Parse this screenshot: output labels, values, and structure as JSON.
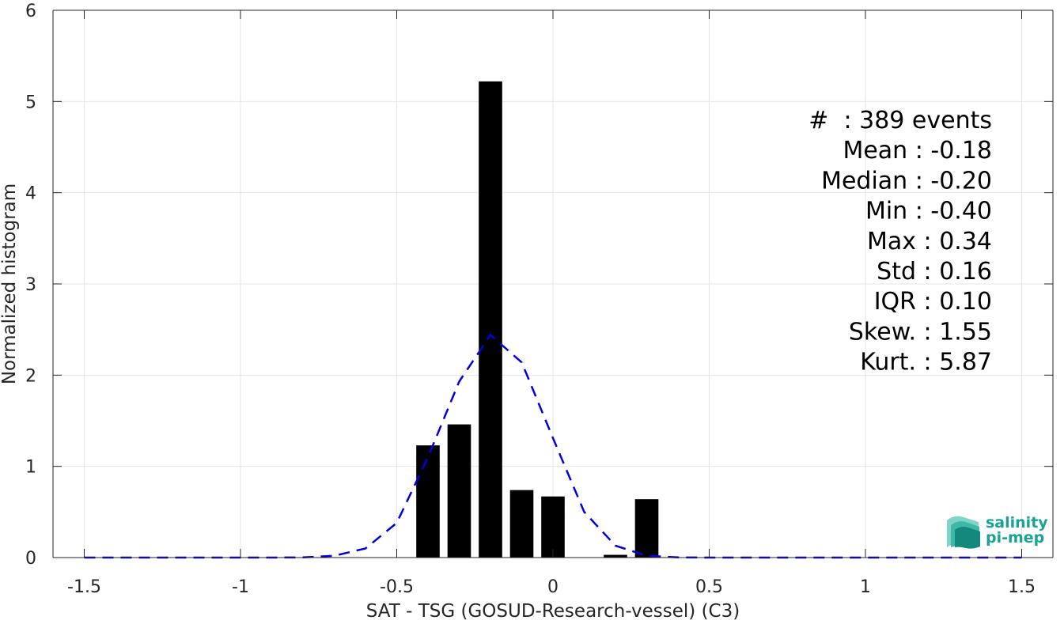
{
  "chart_data": {
    "type": "bar",
    "title": "",
    "xlabel": "SAT - TSG (GOSUD-Research-vessel) (C3)",
    "ylabel": "Normalized histogram",
    "xlim": [
      -1.6,
      1.6
    ],
    "ylim": [
      0,
      6
    ],
    "xticks": [
      -1.5,
      -1,
      -0.5,
      0,
      0.5,
      1,
      1.5
    ],
    "xtick_labels": [
      "-1.5",
      "-1",
      "-0.5",
      "0",
      "0.5",
      "1",
      "1.5"
    ],
    "yticks": [
      0,
      1,
      2,
      3,
      4,
      5,
      6
    ],
    "ytick_labels": [
      "0",
      "1",
      "2",
      "3",
      "4",
      "5",
      "6"
    ],
    "grid": true,
    "series": [
      {
        "type": "bar",
        "color": "#000000",
        "bin_width": 0.075,
        "x": [
          -0.4,
          -0.3,
          -0.2,
          -0.1,
          0.0,
          0.2,
          0.3
        ],
        "values": [
          1.23,
          1.46,
          5.22,
          0.74,
          0.67,
          0.03,
          0.64
        ]
      },
      {
        "type": "line",
        "style": "dashed",
        "color": "#0000e6",
        "x": [
          -1.5,
          -1.4,
          -1.3,
          -1.2,
          -1.1,
          -1.0,
          -0.9,
          -0.8,
          -0.7,
          -0.6,
          -0.5,
          -0.4,
          -0.3,
          -0.2,
          -0.1,
          0.0,
          0.1,
          0.2,
          0.3,
          0.4,
          0.5,
          0.6,
          0.7,
          0.8,
          0.9,
          1.0,
          1.1,
          1.2,
          1.3,
          1.4,
          1.5
        ],
        "values": [
          0,
          0,
          0,
          0,
          0,
          0,
          0,
          0.002,
          0.02,
          0.1,
          0.38,
          1.1,
          1.93,
          2.44,
          2.14,
          1.31,
          0.5,
          0.13,
          0.02,
          0.002,
          0,
          0,
          0,
          0,
          0,
          0,
          0,
          0,
          0,
          0,
          0
        ]
      }
    ],
    "annotations": [
      "#  : 389 events",
      "Mean : -0.18",
      "Median : -0.20",
      "Min : -0.40",
      "Max : 0.34",
      "Std : 0.16",
      "IQR : 0.10",
      "Skew. : 1.55",
      "Kurt. : 5.87"
    ]
  },
  "logo": {
    "line1": "salinity",
    "line2": "pi-mep",
    "color": "#1aa394"
  }
}
